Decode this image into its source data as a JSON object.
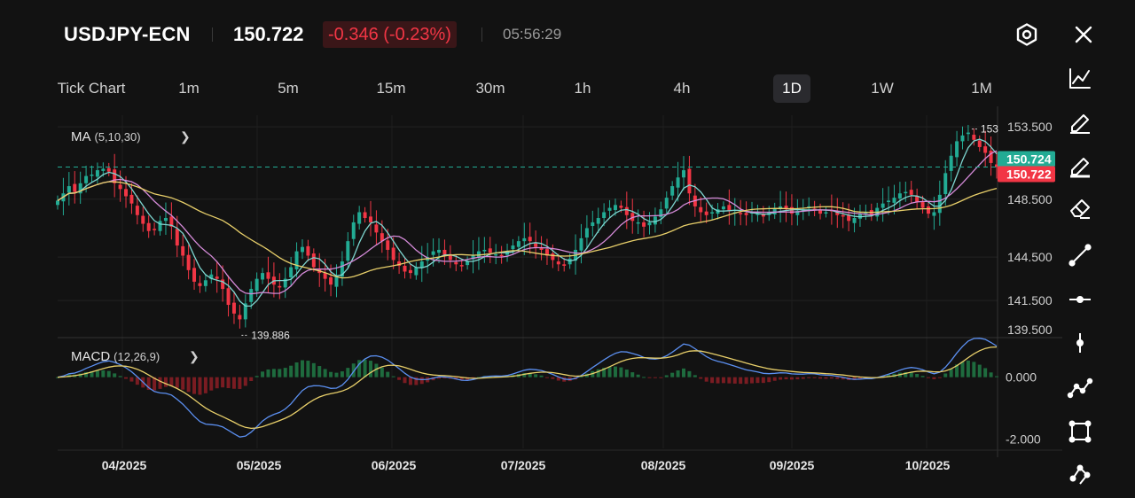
{
  "header": {
    "symbol": "USDJPY-ECN",
    "price": "150.722",
    "change": "-0.346 (-0.23%)",
    "time": "05:56:29",
    "settings_icon": "hexagon-settings-icon",
    "close_icon": "close-icon",
    "colors": {
      "down": "#f23645",
      "up": "#22ab94"
    }
  },
  "timeframes": [
    "Tick Chart",
    "1m",
    "5m",
    "15m",
    "30m",
    "1h",
    "4h",
    "1D",
    "1W",
    "1M"
  ],
  "active_timeframe": "1D",
  "indicators": {
    "ma": {
      "name": "MA",
      "params": "(5,10,30)"
    },
    "macd": {
      "name": "MACD",
      "params": "(12,26,9)"
    }
  },
  "tools": [
    "trend-chart-icon",
    "pencil-icon",
    "highlighter-icon",
    "eraser-icon",
    "trend-line-icon",
    "horizontal-line-icon",
    "vertical-line-icon",
    "polyline-icon",
    "rectangle-icon",
    "pattern-icon"
  ],
  "chart_data": {
    "type": "candlestick",
    "x_labels": [
      "04/2025",
      "05/2025",
      "06/2025",
      "07/2025",
      "08/2025",
      "09/2025",
      "10/2025"
    ],
    "price_axis": [
      "153.500",
      "150.724",
      "150.722",
      "148.500",
      "144.500",
      "141.500",
      "139.500"
    ],
    "macd_axis": [
      "0.000",
      "-2.000"
    ],
    "high_label": "153",
    "low_label": "139.886",
    "bid": "150.724",
    "ask": "150.722",
    "ylim": [
      139.0,
      154.3
    ],
    "macd_ylim": [
      -2.3,
      1.25
    ],
    "close": [
      148.4,
      148.9,
      149.4,
      149.0,
      149.6,
      150.1,
      150.2,
      150.5,
      150.6,
      150.4,
      149.6,
      149.2,
      148.7,
      148.2,
      147.4,
      146.8,
      146.3,
      146.4,
      147.0,
      147.2,
      146.6,
      145.3,
      144.6,
      143.6,
      142.8,
      142.5,
      142.9,
      143.3,
      143.0,
      142.3,
      141.2,
      140.6,
      140.2,
      141.3,
      142.3,
      143.0,
      143.4,
      143.0,
      142.6,
      142.4,
      143.0,
      143.8,
      144.9,
      145.2,
      144.6,
      143.8,
      143.4,
      143.0,
      142.6,
      143.2,
      144.2,
      145.6,
      146.9,
      147.6,
      147.2,
      146.9,
      146.2,
      145.6,
      145.0,
      144.3,
      143.9,
      143.5,
      143.4,
      143.8,
      144.2,
      144.5,
      144.9,
      145.0,
      144.6,
      144.3,
      144.0,
      143.9,
      144.2,
      144.6,
      144.9,
      145.0,
      144.8,
      144.7,
      144.6,
      144.9,
      145.3,
      145.6,
      145.8,
      145.6,
      145.2,
      145.0,
      144.6,
      144.3,
      144.0,
      143.9,
      144.4,
      145.0,
      145.8,
      146.5,
      146.9,
      147.2,
      147.6,
      147.9,
      148.1,
      147.9,
      147.4,
      147.0,
      146.9,
      146.6,
      146.9,
      147.3,
      147.8,
      148.6,
      149.4,
      150.0,
      150.5,
      148.9,
      148.0,
      147.6,
      147.4,
      147.6,
      147.8,
      148.0,
      147.7,
      147.6,
      147.5,
      147.4,
      147.6,
      147.5,
      147.3,
      147.6,
      147.9,
      148.0,
      147.8,
      147.5,
      147.7,
      147.8,
      148.0,
      147.8,
      147.5,
      147.6,
      147.7,
      147.4,
      147.3,
      147.0,
      147.2,
      147.5,
      147.6,
      147.4,
      147.9,
      148.2,
      148.4,
      148.6,
      148.9,
      149.0,
      148.8,
      148.3,
      147.9,
      147.5,
      147.6,
      148.8,
      150.3,
      151.5,
      152.5,
      152.9,
      153.1,
      152.6,
      152.1,
      151.7,
      151.0,
      150.722
    ],
    "ma": [
      {
        "name": "MA5",
        "color": "#7ed6d0",
        "period": 5
      },
      {
        "name": "MA10",
        "color": "#d58bd9",
        "period": 10
      },
      {
        "name": "MA30",
        "color": "#e8cf6a",
        "period": 30
      }
    ]
  }
}
